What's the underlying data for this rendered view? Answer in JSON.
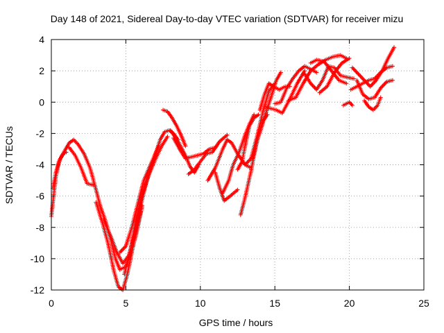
{
  "chart_data": {
    "type": "scatter",
    "title": "Day 148 of 2021, Sidereal Day-to-day VTEC variation (SDTVAR) for receiver mizu",
    "xlabel": "GPS time / hours",
    "ylabel": "SDTVAR / TECUs",
    "xlim": [
      0,
      25
    ],
    "ylim": [
      -12,
      4
    ],
    "xticks": [
      0,
      5,
      10,
      15,
      20,
      25
    ],
    "yticks": [
      -12,
      -10,
      -8,
      -6,
      -4,
      -2,
      0,
      2,
      4
    ],
    "xtick_labels": [
      "0",
      "5",
      "10",
      "15",
      "20",
      "25"
    ],
    "ytick_labels": [
      "-12",
      "-10",
      "-8",
      "-6",
      "-4",
      "-2",
      "0",
      "2",
      "4"
    ],
    "grid": true,
    "legend": "none",
    "marker": "plus",
    "color": "#ff0000",
    "series": [
      {
        "name": "track-1",
        "x": [
          0.0,
          0.15,
          0.3,
          0.5,
          0.8,
          1.0
        ],
        "y": [
          -7.3,
          -6.0,
          -4.8,
          -3.8,
          -3.3,
          -3.2
        ]
      },
      {
        "name": "track-2",
        "x": [
          0.1,
          0.3,
          0.6,
          0.9,
          1.2,
          1.5,
          1.8,
          2.2,
          2.6,
          3.0,
          3.3,
          3.6,
          4.0,
          4.3,
          4.6,
          5.0,
          5.4,
          5.8,
          6.1
        ],
        "y": [
          -5.5,
          -4.5,
          -3.6,
          -3.1,
          -2.6,
          -2.4,
          -2.7,
          -3.3,
          -4.2,
          -5.6,
          -6.7,
          -7.5,
          -8.8,
          -10.0,
          -10.7,
          -10.5,
          -9.5,
          -8.0,
          -6.6
        ]
      },
      {
        "name": "track-3",
        "x": [
          1.2,
          1.6,
          2.0,
          2.4,
          2.8
        ],
        "y": [
          -2.9,
          -3.4,
          -4.2,
          -5.2,
          -5.3
        ]
      },
      {
        "name": "track-4",
        "x": [
          3.0,
          3.4,
          3.8,
          4.2,
          4.5,
          4.8,
          5.1,
          5.4,
          5.7,
          6.0
        ],
        "y": [
          -6.4,
          -7.6,
          -9.0,
          -10.8,
          -11.8,
          -12.0,
          -11.0,
          -9.6,
          -8.2,
          -7.0
        ]
      },
      {
        "name": "track-5",
        "x": [
          3.5,
          4.0,
          4.4,
          4.8,
          5.2,
          5.6,
          6.0,
          6.4,
          6.9,
          7.3,
          7.6,
          7.9,
          8.2,
          8.5
        ],
        "y": [
          -7.5,
          -8.6,
          -9.6,
          -10.3,
          -9.8,
          -8.4,
          -6.6,
          -5.0,
          -3.6,
          -2.4,
          -1.9,
          -1.8,
          -2.0,
          -2.4
        ]
      },
      {
        "name": "track-6",
        "x": [
          4.6,
          5.0,
          5.4,
          5.8,
          6.2,
          6.7,
          7.2
        ],
        "y": [
          -9.6,
          -9.2,
          -8.0,
          -6.5,
          -5.0,
          -3.9,
          -2.8
        ]
      },
      {
        "name": "track-7",
        "x": [
          4.9,
          5.3,
          5.7,
          6.1,
          6.6,
          7.0,
          7.4,
          7.8
        ],
        "y": [
          -11.0,
          -9.5,
          -7.5,
          -5.9,
          -4.5,
          -3.6,
          -2.8,
          -2.2
        ]
      },
      {
        "name": "track-8",
        "x": [
          7.5,
          7.8,
          8.1,
          8.4,
          8.7,
          9.0
        ],
        "y": [
          -0.5,
          -0.6,
          -1.0,
          -1.5,
          -2.1,
          -2.8
        ]
      },
      {
        "name": "track-9",
        "x": [
          8.0,
          8.5,
          9.0,
          9.3,
          9.6,
          9.9
        ],
        "y": [
          -1.8,
          -2.5,
          -3.4,
          -4.1,
          -4.5,
          -4.0
        ]
      },
      {
        "name": "track-10",
        "x": [
          8.2,
          8.6,
          9.0,
          9.4,
          9.8,
          10.2,
          10.6,
          11.0
        ],
        "y": [
          -2.3,
          -3.0,
          -3.6,
          -3.5,
          -3.4,
          -3.3,
          -3.0,
          -2.9
        ]
      },
      {
        "name": "track-11",
        "x": [
          9.2,
          9.6,
          10.0,
          10.4,
          10.8,
          11.3,
          11.8
        ],
        "y": [
          -4.6,
          -4.3,
          -3.8,
          -3.3,
          -3.2,
          -2.5,
          -2.1
        ]
      },
      {
        "name": "track-12",
        "x": [
          10.5,
          11.0,
          11.5,
          11.8,
          12.1,
          12.5,
          13.0,
          13.4
        ],
        "y": [
          -5.0,
          -4.2,
          -3.0,
          -2.4,
          -2.6,
          -3.3,
          -4.0,
          -4.2
        ]
      },
      {
        "name": "track-13",
        "x": [
          11.0,
          11.3,
          11.6,
          12.0,
          12.5
        ],
        "y": [
          -4.5,
          -5.5,
          -6.3,
          -6.0,
          -5.6
        ]
      },
      {
        "name": "track-14",
        "x": [
          11.5,
          11.9,
          12.2,
          12.6,
          13.0,
          13.3,
          13.6
        ],
        "y": [
          -5.8,
          -5.0,
          -4.0,
          -3.2,
          -2.1,
          -1.4,
          -0.8
        ]
      },
      {
        "name": "track-15",
        "x": [
          12.5,
          12.8,
          13.0,
          13.3,
          13.6,
          13.9
        ],
        "y": [
          -4.3,
          -3.8,
          -2.8,
          -1.5,
          -1.0,
          -0.8
        ]
      },
      {
        "name": "track-16",
        "x": [
          12.7,
          13.0,
          13.4,
          13.8,
          14.2,
          14.5
        ],
        "y": [
          -7.2,
          -6.1,
          -4.4,
          -2.4,
          -1.2,
          -0.8
        ]
      },
      {
        "name": "track-17",
        "x": [
          13.0,
          13.4,
          13.8,
          14.2,
          14.6,
          15.0
        ],
        "y": [
          -4.0,
          -3.6,
          -2.2,
          -0.6,
          0.7,
          1.2
        ]
      },
      {
        "name": "track-18",
        "x": [
          13.5,
          13.9,
          14.3,
          14.7,
          15.1,
          15.4
        ],
        "y": [
          -3.6,
          -2.2,
          -1.0,
          0.2,
          1.4,
          1.9
        ]
      },
      {
        "name": "track-19",
        "x": [
          14.0,
          14.3,
          14.6,
          14.9,
          15.3,
          15.7,
          16.0
        ],
        "y": [
          -0.5,
          0.5,
          1.2,
          1.0,
          0.8,
          1.0,
          1.0
        ]
      },
      {
        "name": "track-20",
        "x": [
          14.3,
          14.7,
          15.1,
          15.5,
          16.0,
          16.5,
          17.0
        ],
        "y": [
          -0.3,
          -0.4,
          -0.5,
          -0.7,
          0.2,
          1.2,
          2.0
        ]
      },
      {
        "name": "track-21",
        "x": [
          15.0,
          15.4,
          15.8,
          16.2,
          16.6,
          17.0,
          17.4,
          17.8
        ],
        "y": [
          -0.1,
          0.0,
          0.9,
          1.5,
          2.0,
          2.3,
          2.1,
          1.9
        ]
      },
      {
        "name": "track-22",
        "x": [
          15.9,
          16.4,
          16.9,
          17.4,
          17.9,
          18.4,
          18.9,
          19.4,
          19.8
        ],
        "y": [
          0.1,
          0.3,
          1.2,
          2.0,
          2.4,
          2.7,
          2.9,
          3.0,
          2.8
        ]
      },
      {
        "name": "track-23",
        "x": [
          17.0,
          17.4,
          17.8,
          18.2,
          18.6,
          19.0,
          19.4,
          19.8,
          20.3
        ],
        "y": [
          1.8,
          1.2,
          0.8,
          1.4,
          2.3,
          2.2,
          1.7,
          1.6,
          1.5
        ]
      },
      {
        "name": "track-24",
        "x": [
          17.4,
          17.8,
          18.3,
          18.8,
          19.3,
          19.8
        ],
        "y": [
          2.5,
          2.7,
          2.6,
          2.0,
          1.4,
          1.2
        ]
      },
      {
        "name": "track-25",
        "x": [
          18.0,
          18.5,
          19.0,
          19.5,
          20.0
        ],
        "y": [
          0.6,
          1.0,
          1.9,
          2.5,
          2.8
        ]
      },
      {
        "name": "track-26",
        "x": [
          19.6,
          19.8,
          20.0,
          20.2
        ],
        "y": [
          -0.2,
          -0.1,
          0.0,
          -0.2
        ]
      },
      {
        "name": "track-27",
        "x": [
          20.2,
          20.6,
          21.0,
          21.4,
          21.8,
          22.2,
          22.6,
          23.0
        ],
        "y": [
          2.2,
          1.8,
          1.4,
          1.0,
          1.4,
          2.0,
          2.8,
          3.5
        ]
      },
      {
        "name": "track-28",
        "x": [
          20.1,
          20.5,
          20.9,
          21.3,
          21.7,
          22.1,
          22.5,
          22.9
        ],
        "y": [
          0.8,
          1.0,
          1.2,
          1.4,
          1.5,
          1.9,
          2.2,
          2.3
        ]
      },
      {
        "name": "track-29",
        "x": [
          20.5,
          20.9,
          21.3,
          21.7,
          22.1,
          22.5,
          22.9
        ],
        "y": [
          1.4,
          0.5,
          0.2,
          0.3,
          0.9,
          1.3,
          1.4
        ]
      },
      {
        "name": "track-30",
        "x": [
          21.0,
          21.3,
          21.6,
          21.9,
          22.1
        ],
        "y": [
          0.1,
          -0.3,
          -0.5,
          -0.2,
          0.3
        ]
      }
    ]
  }
}
